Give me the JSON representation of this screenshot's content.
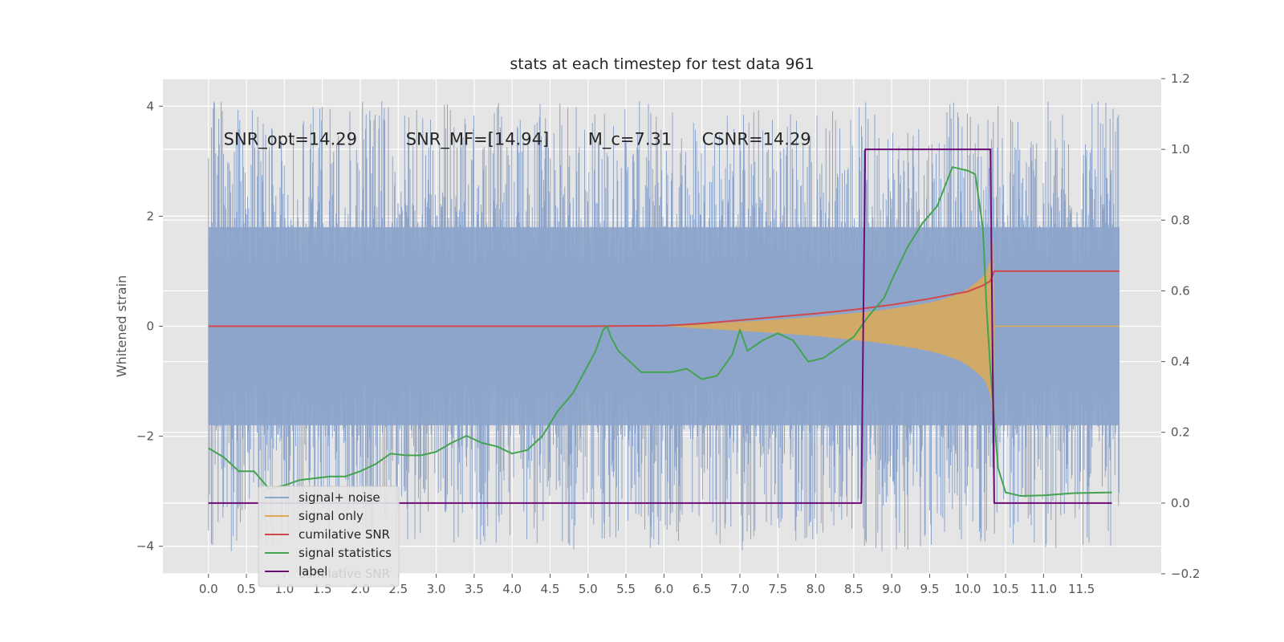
{
  "chart_data": {
    "type": "line",
    "title": "stats at each timestep for test data 961",
    "ylabel": "Whitened strain",
    "y2label": "",
    "xlim": [
      -0.6,
      12.55
    ],
    "ylim": [
      -4.5,
      4.5
    ],
    "y2lim": [
      -0.2,
      1.2
    ],
    "x_ticks": [
      0.0,
      0.5,
      1.0,
      1.5,
      2.0,
      2.5,
      3.0,
      3.5,
      4.0,
      4.5,
      5.0,
      5.5,
      6.0,
      6.5,
      7.0,
      7.5,
      8.0,
      8.5,
      9.0,
      9.5,
      10.0,
      10.5,
      11.0,
      11.5
    ],
    "x_tick_labels": [
      "0.0",
      "0.5",
      "1.0",
      "1.5",
      "2.0",
      "2.5",
      "3.0",
      "3.5",
      "4.0",
      "4.5",
      "5.0",
      "5.5",
      "6.0",
      "6.5",
      "7.0",
      "7.5",
      "8.0",
      "8.5",
      "9.0",
      "9.5",
      "10.0",
      "10.5",
      "11.0",
      "11.5"
    ],
    "y_ticks": [
      -4,
      -2,
      0,
      2,
      4
    ],
    "y_tick_labels": [
      "−4",
      "−2",
      "0",
      "2",
      "4"
    ],
    "y2_ticks": [
      -0.2,
      0.0,
      0.2,
      0.4,
      0.6,
      0.8,
      1.0,
      1.2
    ],
    "y2_tick_labels": [
      "−0.2",
      "0.0",
      "0.2",
      "0.4",
      "0.6",
      "0.8",
      "1.0",
      "1.2"
    ],
    "grid": true,
    "legend_placement": "lower left",
    "annotations": [
      {
        "text": "SNR_opt=14.29",
        "x": 0.2,
        "y": 3.3
      },
      {
        "text": "SNR_MF=[14.94]",
        "x": 2.6,
        "y": 3.3
      },
      {
        "text": "M_c=7.31",
        "x": 5.0,
        "y": 3.3
      },
      {
        "text": "CSNR=14.29",
        "x": 6.5,
        "y": 3.3
      }
    ],
    "series": [
      {
        "name": "signal+ noise",
        "axis": "left",
        "kind": "noise-band",
        "x_range": [
          0.0,
          12.0
        ],
        "envelope_upper": 1.8,
        "envelope_lower": -1.8,
        "peak_max": 4.1,
        "peak_min": -4.1
      },
      {
        "name": "signal only",
        "axis": "left",
        "kind": "chirp-envelope",
        "x": [
          6.0,
          6.5,
          7.0,
          7.5,
          8.0,
          8.5,
          8.8,
          9.0,
          9.3,
          9.5,
          9.7,
          9.9,
          10.0,
          10.1,
          10.2,
          10.25,
          10.3,
          10.34,
          10.35,
          12.0
        ],
        "amplitude": [
          0.0,
          0.04,
          0.08,
          0.12,
          0.17,
          0.24,
          0.28,
          0.32,
          0.38,
          0.43,
          0.5,
          0.6,
          0.68,
          0.78,
          0.9,
          1.0,
          1.2,
          1.7,
          0.0,
          0.0
        ]
      },
      {
        "name": "cumilative SNR",
        "axis": "left",
        "x": [
          0.0,
          5.0,
          6.0,
          6.3,
          6.5,
          7.0,
          7.5,
          8.0,
          8.5,
          9.0,
          9.5,
          10.0,
          10.2,
          10.3,
          10.35,
          12.0
        ],
        "values": [
          0.0,
          0.0,
          0.01,
          0.03,
          0.05,
          0.11,
          0.17,
          0.23,
          0.3,
          0.39,
          0.5,
          0.63,
          0.74,
          0.82,
          1.0,
          1.0
        ]
      },
      {
        "name": "signal statistics",
        "axis": "right",
        "x": [
          0.0,
          0.2,
          0.4,
          0.6,
          0.8,
          1.0,
          1.2,
          1.4,
          1.6,
          1.8,
          2.0,
          2.2,
          2.4,
          2.6,
          2.8,
          3.0,
          3.2,
          3.4,
          3.6,
          3.8,
          4.0,
          4.2,
          4.4,
          4.6,
          4.8,
          5.0,
          5.1,
          5.2,
          5.25,
          5.3,
          5.4,
          5.5,
          5.7,
          5.9,
          6.1,
          6.3,
          6.5,
          6.7,
          6.9,
          7.0,
          7.1,
          7.3,
          7.5,
          7.7,
          7.9,
          8.1,
          8.3,
          8.5,
          8.7,
          8.9,
          9.0,
          9.2,
          9.4,
          9.6,
          9.8,
          10.0,
          10.1,
          10.2,
          10.25,
          10.3,
          10.4,
          10.5,
          10.7,
          11.0,
          11.4,
          11.9
        ],
        "values": [
          0.155,
          0.13,
          0.09,
          0.09,
          0.04,
          0.05,
          0.065,
          0.07,
          0.075,
          0.075,
          0.09,
          0.11,
          0.14,
          0.135,
          0.135,
          0.145,
          0.17,
          0.19,
          0.17,
          0.16,
          0.14,
          0.15,
          0.19,
          0.26,
          0.31,
          0.39,
          0.43,
          0.49,
          0.5,
          0.47,
          0.43,
          0.41,
          0.37,
          0.37,
          0.37,
          0.38,
          0.35,
          0.36,
          0.42,
          0.49,
          0.43,
          0.46,
          0.48,
          0.46,
          0.4,
          0.41,
          0.44,
          0.47,
          0.53,
          0.58,
          0.63,
          0.72,
          0.79,
          0.84,
          0.95,
          0.94,
          0.93,
          0.78,
          0.55,
          0.38,
          0.1,
          0.03,
          0.02,
          0.022,
          0.028,
          0.03
        ]
      },
      {
        "name": "label",
        "axis": "right",
        "x": [
          0.0,
          8.6,
          8.65,
          10.3,
          10.35,
          11.9
        ],
        "values": [
          0.0,
          0.0,
          1.0,
          1.0,
          0.0,
          0.0
        ]
      }
    ],
    "colors": {
      "signal+ noise": "#8ea5cb",
      "signal only": "#dcaa55",
      "cumilative SNR": "#d1484b",
      "signal statistics": "#43a34f",
      "label": "#6d0c79",
      "plot_background": "#e5e5e5",
      "grid": "#ffffff"
    }
  },
  "legend": {
    "items": [
      "signal+ noise",
      "signal only",
      "cumilative SNR",
      "signal statistics",
      "label"
    ],
    "ghost_text": "cumilative SNR"
  }
}
